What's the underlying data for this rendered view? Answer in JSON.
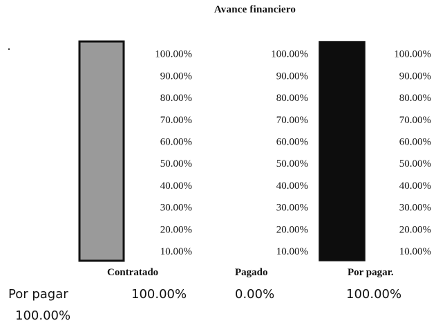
{
  "title": "Avance financiero",
  "chart_data": {
    "type": "bar",
    "categories": [
      "Contratado",
      "Pagado",
      "Por pagar."
    ],
    "values": [
      100,
      0,
      100
    ],
    "value_labels": [
      "100.00%",
      "0.00%",
      "100.00%"
    ],
    "ylim": [
      0,
      100
    ],
    "y_ticks": [
      "10.00%",
      "20.00%",
      "30.00%",
      "40.00%",
      "50.00%",
      "60.00%",
      "70.00%",
      "80.00%",
      "90.00%",
      "100.00%"
    ],
    "colors": [
      "#9a9a9a",
      "#ffffff",
      "#0d0d0d"
    ]
  },
  "summary": {
    "label": "Por pagar",
    "value": "100.00%"
  }
}
